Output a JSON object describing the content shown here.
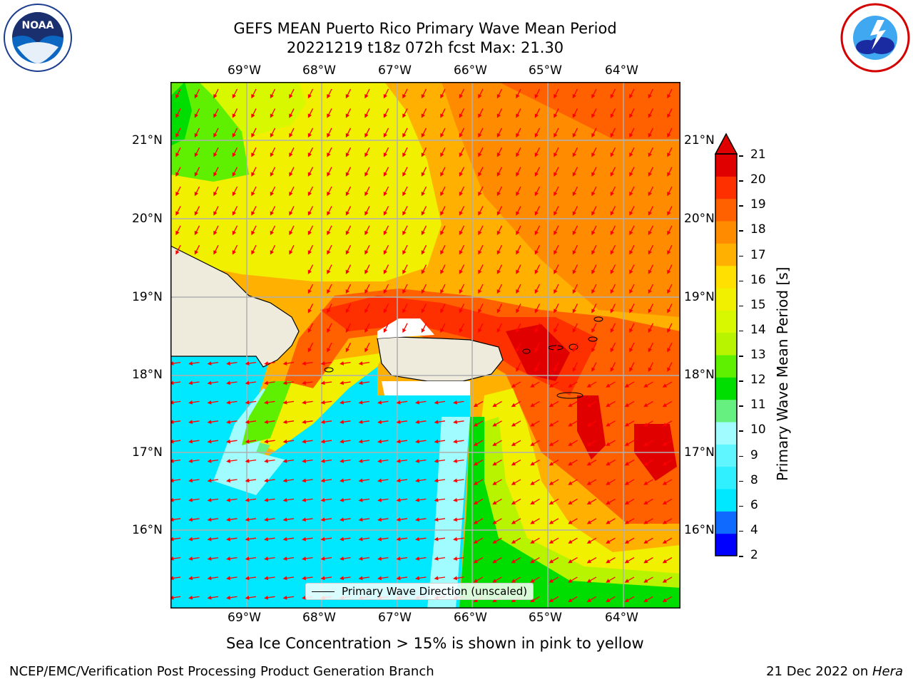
{
  "title": "GEFS MEAN Puerto Rico Primary Wave Mean Period",
  "subtitle": "20221219 t18z 072h fcst   Max: 21.30",
  "axes": {
    "lon_labels": [
      "69°W",
      "68°W",
      "67°W",
      "66°W",
      "65°W",
      "64°W"
    ],
    "lat_labels": [
      "21°N",
      "20°N",
      "19°N",
      "18°N",
      "17°N",
      "16°N"
    ]
  },
  "legend": {
    "label": "Primary Wave Direction (unscaled)"
  },
  "colorbar": {
    "title": "Primary Wave Mean Period [s]",
    "ticks": [
      "21",
      "20",
      "19",
      "18",
      "17",
      "16",
      "15",
      "14",
      "13",
      "12",
      "11",
      "10",
      "9",
      "8",
      "6",
      "4",
      "2"
    ],
    "colors": [
      "#0000ff",
      "#0f6bff",
      "#00e8ff",
      "#30f0ff",
      "#5ff6ff",
      "#a0fcff",
      "#66f080",
      "#00dd00",
      "#5ef000",
      "#b8f400",
      "#d8f800",
      "#f0f000",
      "#ffe000",
      "#ffb000",
      "#ff8c00",
      "#ff6000",
      "#ff3000",
      "#e00000"
    ]
  },
  "caption": "Sea Ice Concentration > 15% is shown in pink to yellow",
  "footer_left": "NCEP/EMC/Verification Post Processing Product Generation Branch",
  "footer_right_prefix": "21 Dec 2022 on ",
  "footer_right_machine": "Hera",
  "logos": {
    "left": "NOAA",
    "right_icon": "nws-logo"
  }
}
